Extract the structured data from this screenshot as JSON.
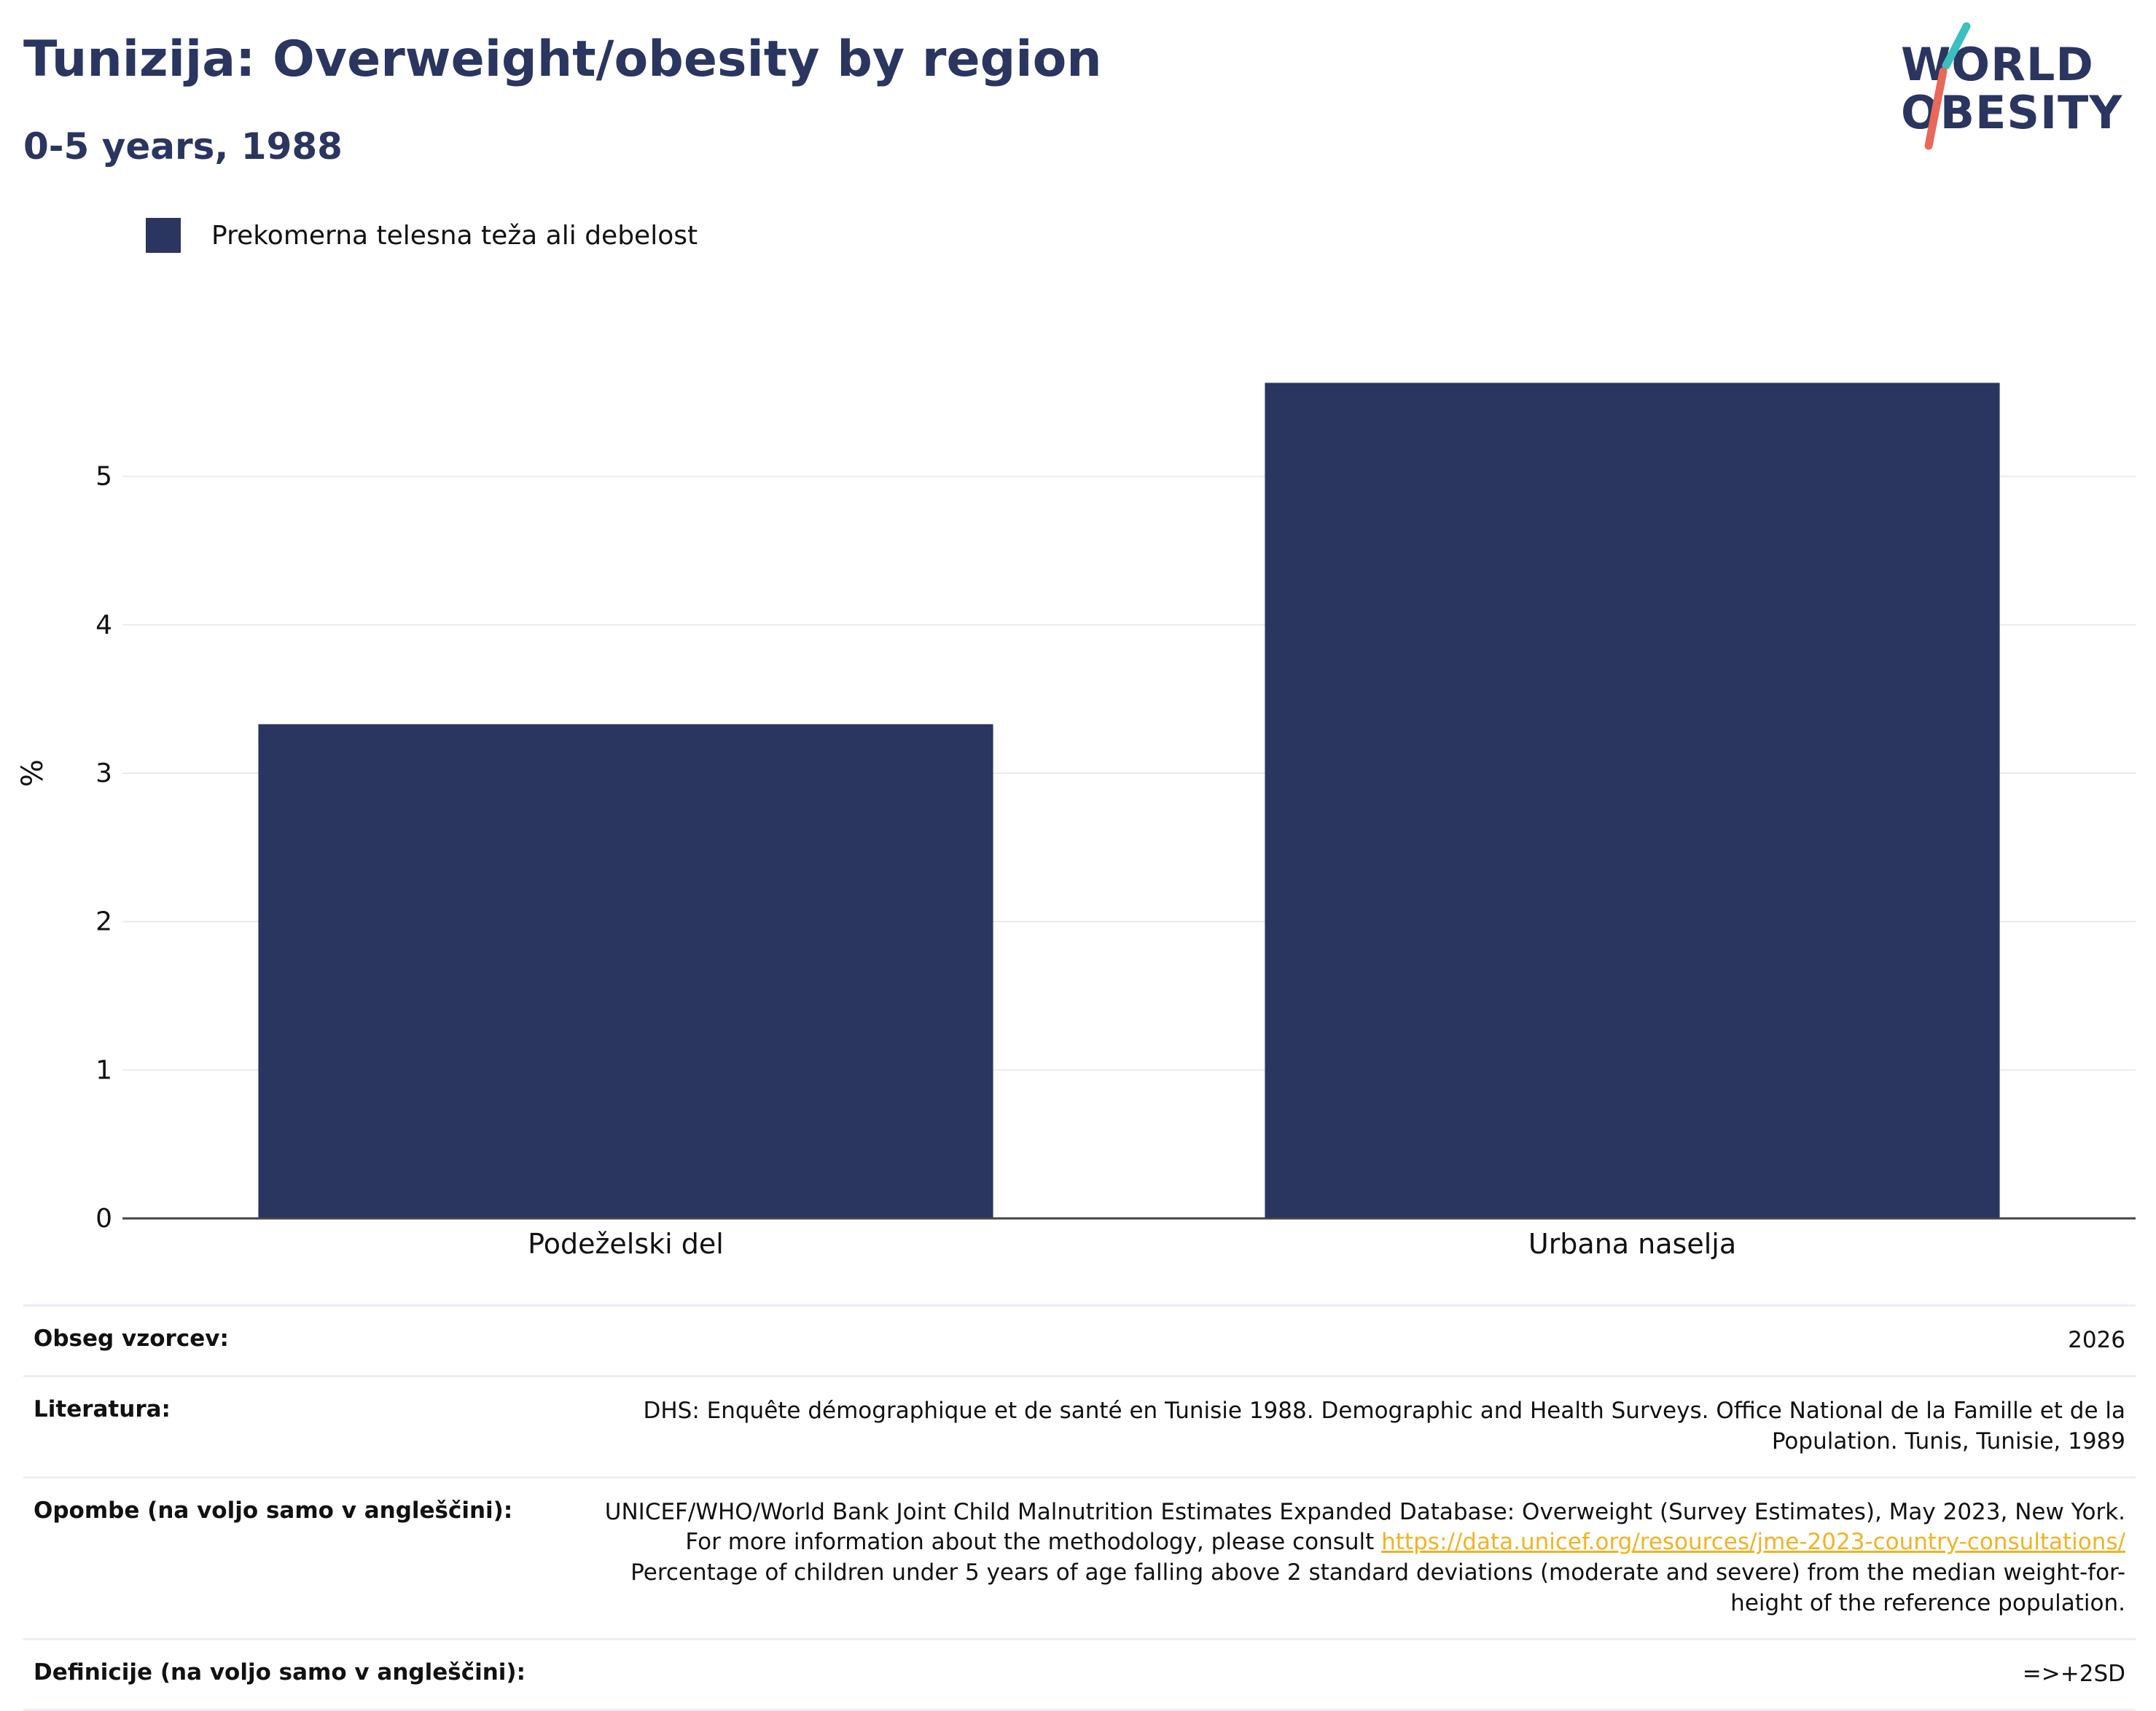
{
  "header": {
    "title": "Tunizija: Overweight/obesity by region",
    "subtitle": "0-5 years, 1988"
  },
  "logo": {
    "line1": "WORLD",
    "line2": "OBESITY",
    "colors": {
      "text": "#2a3560",
      "slash_top": "#3bbfbf",
      "slash_bottom": "#e8685a"
    }
  },
  "legend": {
    "label": "Prekomerna telesna teža ali debelost",
    "color": "#2a3660"
  },
  "chart_data": {
    "type": "bar",
    "categories": [
      "Podeželski del",
      "Urbana naselja"
    ],
    "series": [
      {
        "name": "Prekomerna telesna teža ali debelost",
        "values": [
          3.33,
          5.63
        ],
        "color": "#2a3660"
      }
    ],
    "ylabel": "%",
    "xlabel": "",
    "ylim": [
      0,
      6
    ],
    "yticks": [
      0,
      1,
      2,
      3,
      4,
      5
    ],
    "grid": true,
    "legend_position": "top-left"
  },
  "info": {
    "sample_size": {
      "label": "Obseg vzorcev:",
      "value": "2026"
    },
    "literature": {
      "label": "Literatura:",
      "value": "DHS: Enquête démographique et de santé en Tunisie 1988. Demographic and Health Surveys. Office National de la Famille et de la Population. Tunis, Tunisie, 1989"
    },
    "notes": {
      "label": "Opombe (na voljo samo v angleščini):",
      "text_before": "UNICEF/WHO/World Bank Joint Child Malnutrition Estimates Expanded Database: Overweight (Survey Estimates), May 2023, New York. For more information about the methodology, please consult ",
      "link": "https://data.unicef.org/resources/jme-2023-country-consultations/",
      "text_after": " Percentage of children under 5 years of age falling above 2 standard deviations (moderate and severe) from the median weight-for-height of the reference population."
    },
    "definitions": {
      "label": "Definicije (na voljo samo v angleščini):",
      "value": "=>+2SD"
    }
  }
}
